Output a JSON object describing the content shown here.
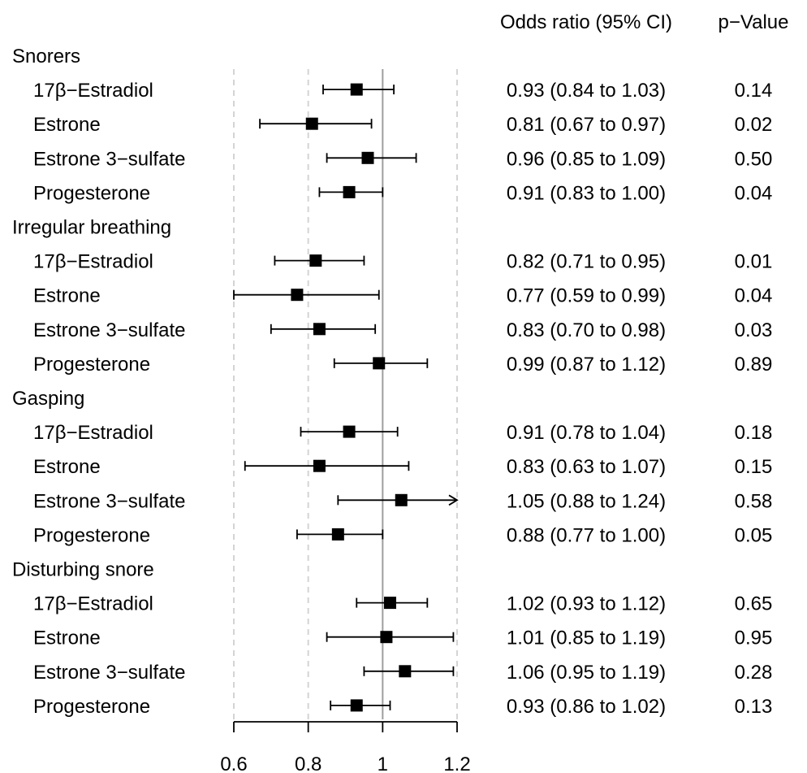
{
  "chart_data": {
    "type": "forest",
    "headers": {
      "or": "Odds ratio (95% CI)",
      "p": "p−Value"
    },
    "xlim": [
      0.6,
      1.2
    ],
    "xticks": [
      0.6,
      0.8,
      1,
      1.2
    ],
    "xtick_labels": [
      "0.6",
      "0.8",
      "1",
      "1.2"
    ],
    "reference_line": 1,
    "dashed_gridlines": [
      0.6,
      0.8,
      1.2
    ],
    "groups": [
      {
        "name": "Snorers",
        "rows": [
          {
            "label": "17β−Estradiol",
            "or": 0.93,
            "lo": 0.84,
            "hi": 1.03,
            "ci_text": "0.93 (0.84 to 1.03)",
            "p": "0.14"
          },
          {
            "label": "Estrone",
            "or": 0.81,
            "lo": 0.67,
            "hi": 0.97,
            "ci_text": "0.81 (0.67 to 0.97)",
            "p": "0.02"
          },
          {
            "label": "Estrone 3−sulfate",
            "or": 0.96,
            "lo": 0.85,
            "hi": 1.09,
            "ci_text": "0.96 (0.85 to 1.09)",
            "p": "0.50"
          },
          {
            "label": "Progesterone",
            "or": 0.91,
            "lo": 0.83,
            "hi": 1.0,
            "ci_text": "0.91 (0.83 to 1.00)",
            "p": "0.04"
          }
        ]
      },
      {
        "name": "Irregular breathing",
        "rows": [
          {
            "label": "17β−Estradiol",
            "or": 0.82,
            "lo": 0.71,
            "hi": 0.95,
            "ci_text": "0.82 (0.71 to 0.95)",
            "p": "0.01"
          },
          {
            "label": "Estrone",
            "or": 0.77,
            "lo": 0.59,
            "hi": 0.99,
            "ci_text": "0.77 (0.59 to 0.99)",
            "p": "0.04"
          },
          {
            "label": "Estrone 3−sulfate",
            "or": 0.83,
            "lo": 0.7,
            "hi": 0.98,
            "ci_text": "0.83 (0.70 to 0.98)",
            "p": "0.03"
          },
          {
            "label": "Progesterone",
            "or": 0.99,
            "lo": 0.87,
            "hi": 1.12,
            "ci_text": "0.99 (0.87 to 1.12)",
            "p": "0.89"
          }
        ]
      },
      {
        "name": "Gasping",
        "rows": [
          {
            "label": "17β−Estradiol",
            "or": 0.91,
            "lo": 0.78,
            "hi": 1.04,
            "ci_text": "0.91 (0.78 to 1.04)",
            "p": "0.18"
          },
          {
            "label": "Estrone",
            "or": 0.83,
            "lo": 0.63,
            "hi": 1.07,
            "ci_text": "0.83 (0.63 to 1.07)",
            "p": "0.15"
          },
          {
            "label": "Estrone 3−sulfate",
            "or": 1.05,
            "lo": 0.88,
            "hi": 1.24,
            "ci_text": "1.05 (0.88 to 1.24)",
            "p": "0.58",
            "truncated": true
          },
          {
            "label": "Progesterone",
            "or": 0.88,
            "lo": 0.77,
            "hi": 1.0,
            "ci_text": "0.88 (0.77 to 1.00)",
            "p": "0.05"
          }
        ]
      },
      {
        "name": "Disturbing snore",
        "rows": [
          {
            "label": "17β−Estradiol",
            "or": 1.02,
            "lo": 0.93,
            "hi": 1.12,
            "ci_text": "1.02 (0.93 to 1.12)",
            "p": "0.65"
          },
          {
            "label": "Estrone",
            "or": 1.01,
            "lo": 0.85,
            "hi": 1.19,
            "ci_text": "1.01 (0.85 to 1.19)",
            "p": "0.95"
          },
          {
            "label": "Estrone 3−sulfate",
            "or": 1.06,
            "lo": 0.95,
            "hi": 1.19,
            "ci_text": "1.06 (0.95 to 1.19)",
            "p": "0.28"
          },
          {
            "label": "Progesterone",
            "or": 0.93,
            "lo": 0.86,
            "hi": 1.02,
            "ci_text": "0.93 (0.86 to 1.02)",
            "p": "0.13"
          }
        ]
      }
    ]
  },
  "colors": {
    "ink": "#000000",
    "reference_line": "#9e9e9e",
    "gridline": "#d4d4d4"
  }
}
